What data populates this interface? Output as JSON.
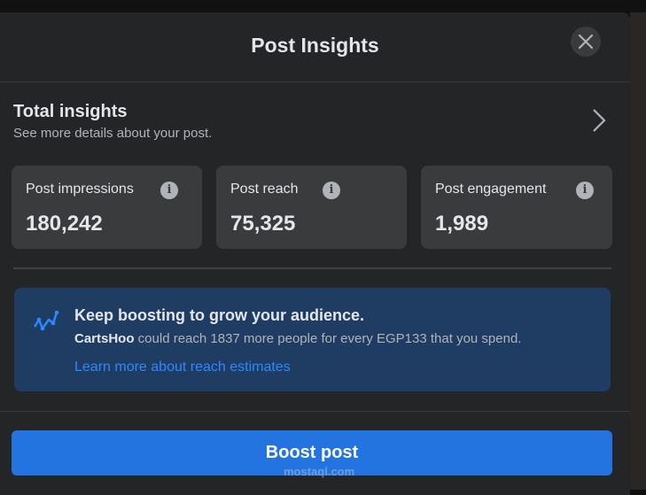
{
  "dialog": {
    "title": "Post Insights"
  },
  "total": {
    "title": "Total insights",
    "subtitle": "See more details about your post."
  },
  "metrics": [
    {
      "label": "Post impressions",
      "value": "180,242"
    },
    {
      "label": "Post reach",
      "value": "75,325"
    },
    {
      "label": "Post engagement",
      "value": "1,989"
    }
  ],
  "tip": {
    "heading": "Keep boosting to grow your audience.",
    "page_name": "CartsHoo",
    "text": " could reach 1837 more people for every EGP133 that you spend.",
    "link": "Learn more about reach estimates"
  },
  "boost_label": "Boost post",
  "watermark": "mostaql.com",
  "colors": {
    "accent": "#2374e1",
    "link": "#2d88ff",
    "tip_bg": "#1f3d63"
  }
}
